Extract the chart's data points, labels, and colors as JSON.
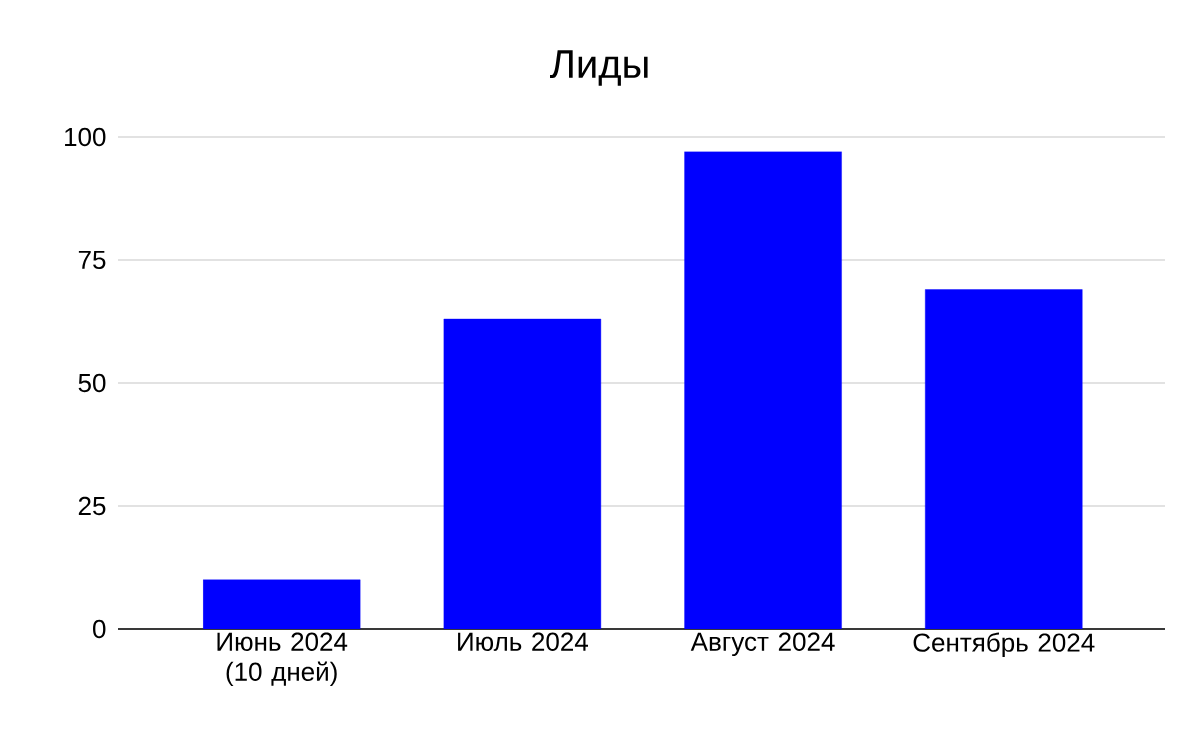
{
  "chart_data": {
    "type": "bar",
    "title": "Лиды",
    "categories": [
      "Июнь 2024 (10 дней)",
      "Июль 2024",
      "Август 2024",
      "Сентябрь 2024"
    ],
    "values": [
      10,
      63,
      97,
      69
    ],
    "color": "#0000ff",
    "ylim": [
      0,
      100
    ],
    "yticks": [
      0,
      25,
      50,
      75,
      100
    ],
    "grid": "y"
  }
}
